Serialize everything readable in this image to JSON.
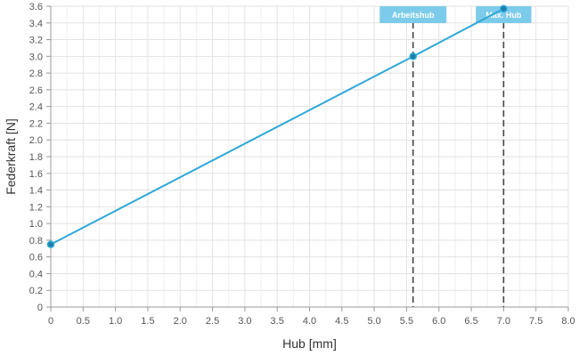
{
  "chart_data": {
    "type": "line",
    "title": "",
    "xlabel": "Hub [mm]",
    "ylabel": "Federkraft [N]",
    "xlim": [
      0,
      8.0
    ],
    "ylim": [
      0,
      3.6
    ],
    "x_ticks": [
      "0",
      "0.5",
      "1.0",
      "1.5",
      "2.0",
      "2.5",
      "3.0",
      "3.5",
      "4.0",
      "4.5",
      "5.0",
      "5.5",
      "6.0",
      "6.5",
      "7.0",
      "7.5",
      "8.0"
    ],
    "y_ticks": [
      "0",
      "0.2",
      "0.4",
      "0.6",
      "0.8",
      "1.0",
      "1.2",
      "1.4",
      "1.6",
      "1.8",
      "2.0",
      "2.2",
      "2.4",
      "2.6",
      "2.8",
      "3.0",
      "3.2",
      "3.4",
      "3.6"
    ],
    "grid": true,
    "line_color": "#2ea8d9",
    "point_color": "#1c7fa6",
    "series": [
      {
        "x": [
          0,
          5.6,
          7.0
        ],
        "y": [
          0.75,
          3.0,
          3.57
        ]
      }
    ],
    "markers": [
      {
        "label": "Arbeitshub",
        "x": 5.6
      },
      {
        "label": "Max. Hub",
        "x": 7.0
      }
    ],
    "marker_color": "#7dcbea"
  }
}
